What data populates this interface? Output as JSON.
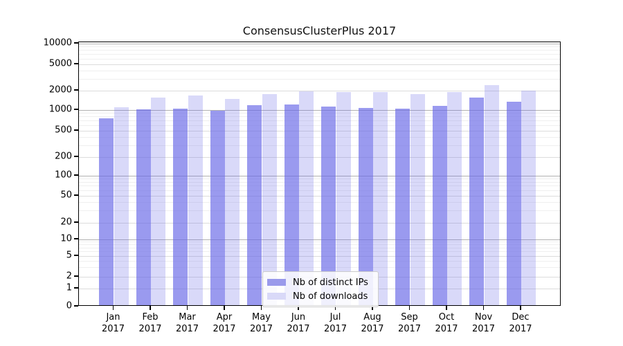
{
  "chart_data": {
    "type": "bar",
    "title": "ConsensusClusterPlus 2017",
    "xlabel": "",
    "ylabel": "",
    "year": "2017",
    "categories": [
      "Jan",
      "Feb",
      "Mar",
      "Apr",
      "May",
      "Jun",
      "Jul",
      "Aug",
      "Sep",
      "Oct",
      "Nov",
      "Dec"
    ],
    "series": [
      {
        "name": "Nb of distinct IPs",
        "color": "#9a9aeb",
        "fill": "rgba(102,102,230,0.66)",
        "values": [
          720,
          980,
          1000,
          940,
          1130,
          1150,
          1080,
          1030,
          1000,
          1100,
          1500,
          1270
        ]
      },
      {
        "name": "Nb of downloads",
        "color": "#d9d9f8",
        "fill": "rgba(102,102,230,0.25)",
        "values": [
          1050,
          1500,
          1600,
          1400,
          1700,
          1860,
          1830,
          1810,
          1700,
          1800,
          2300,
          1920
        ]
      }
    ],
    "y_ticks": [
      0,
      1,
      2,
      5,
      10,
      20,
      50,
      100,
      200,
      500,
      1000,
      2000,
      5000,
      10000
    ],
    "ylim": [
      0,
      10000
    ],
    "y_scale": "log-like",
    "grid": true,
    "legend_position": "bottom-center"
  }
}
